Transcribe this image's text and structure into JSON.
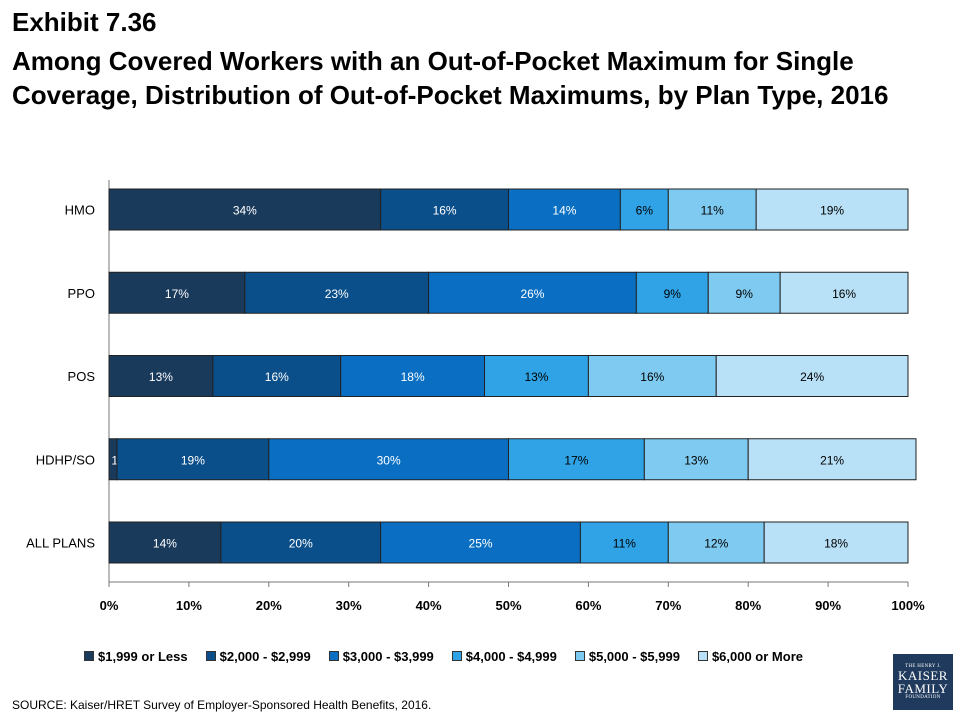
{
  "header": {
    "exhibit": "Exhibit 7.36",
    "title": "Among Covered Workers with an Out-of-Pocket Maximum for Single Coverage, Distribution of Out-of-Pocket Maximums, by Plan Type, 2016"
  },
  "chart_data": {
    "type": "bar",
    "orientation": "horizontal",
    "stacked": true,
    "categories": [
      "HMO",
      "PPO",
      "POS",
      "HDHP/SO",
      "ALL PLANS"
    ],
    "series": [
      {
        "name": "$1,999 or Less",
        "values": [
          34,
          17,
          13,
          1,
          14
        ],
        "color": "#1a3a5c"
      },
      {
        "name": "$2,000 - $2,999",
        "values": [
          16,
          23,
          16,
          19,
          20
        ],
        "color": "#0b4f8a"
      },
      {
        "name": "$3,000 - $3,999",
        "values": [
          14,
          26,
          18,
          30,
          25
        ],
        "color": "#0a6fc2"
      },
      {
        "name": "$4,000 - $4,999",
        "values": [
          6,
          9,
          13,
          17,
          11
        ],
        "color": "#2fa3e6"
      },
      {
        "name": "$5,000 - $5,999",
        "values": [
          11,
          9,
          16,
          13,
          12
        ],
        "color": "#7fcaf0"
      },
      {
        "name": "$6,000 or More",
        "values": [
          19,
          16,
          24,
          21,
          18
        ],
        "color": "#b8e0f6"
      }
    ],
    "data_labels": [
      [
        "34%",
        "16%",
        "14%",
        "6%",
        "11%",
        "19%"
      ],
      [
        "17%",
        "23%",
        "26%",
        "9%",
        "9%",
        "16%"
      ],
      [
        "13%",
        "16%",
        "18%",
        "13%",
        "16%",
        "24%"
      ],
      [
        "1%",
        "19%",
        "30%",
        "17%",
        "13%",
        "21%"
      ],
      [
        "14%",
        "20%",
        "25%",
        "11%",
        "12%",
        "18%"
      ]
    ],
    "xlim": [
      0,
      100
    ],
    "xticks": [
      "0%",
      "10%",
      "20%",
      "30%",
      "40%",
      "50%",
      "60%",
      "70%",
      "80%",
      "90%",
      "100%"
    ],
    "grid": false,
    "legend_position": "bottom"
  },
  "source": "SOURCE:  Kaiser/HRET Survey of Employer-Sponsored Health Benefits,  2016.",
  "logo": {
    "line1": "THE HENRY J.",
    "line2": "KAISER",
    "line3": "FAMILY",
    "line4": "FOUNDATION"
  }
}
